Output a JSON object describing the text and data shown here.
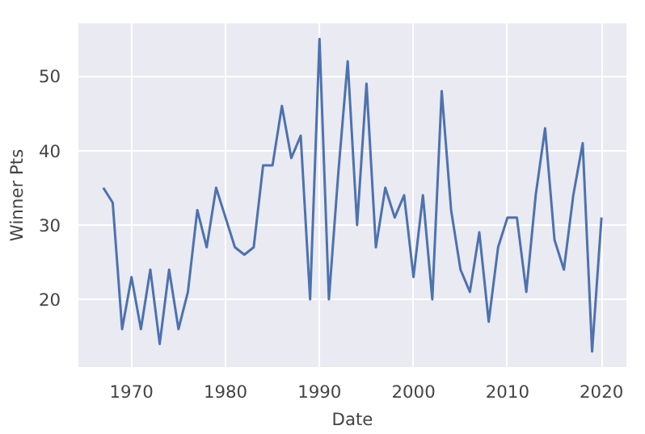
{
  "chart_data": {
    "type": "line",
    "xlabel": "Date",
    "ylabel": "Winner Pts",
    "x": [
      1967,
      1968,
      1969,
      1970,
      1971,
      1972,
      1973,
      1974,
      1975,
      1976,
      1977,
      1978,
      1979,
      1980,
      1981,
      1982,
      1983,
      1984,
      1985,
      1986,
      1987,
      1988,
      1989,
      1990,
      1991,
      1992,
      1993,
      1994,
      1995,
      1996,
      1997,
      1998,
      1999,
      2000,
      2001,
      2002,
      2003,
      2004,
      2005,
      2006,
      2007,
      2008,
      2009,
      2010,
      2011,
      2012,
      2013,
      2014,
      2015,
      2016,
      2017,
      2018,
      2019,
      2020
    ],
    "series": [
      {
        "color": "#4c72b0",
        "values": [
          35,
          33,
          16,
          23,
          16,
          24,
          14,
          24,
          16,
          21,
          32,
          27,
          35,
          31,
          27,
          26,
          27,
          38,
          38,
          46,
          39,
          42,
          20,
          55,
          20,
          37,
          52,
          30,
          49,
          27,
          35,
          31,
          34,
          23,
          34,
          20,
          48,
          32,
          24,
          21,
          29,
          17,
          27,
          31,
          31,
          21,
          34,
          43,
          28,
          24,
          34,
          41,
          13,
          31
        ]
      }
    ],
    "xlim": [
      1964.35,
      2022.65
    ],
    "ylim": [
      10.9,
      57.1
    ],
    "xticks": [
      1970,
      1980,
      1990,
      2000,
      2010,
      2020
    ],
    "yticks": [
      20,
      30,
      40,
      50
    ],
    "grid": true,
    "marker": "none",
    "line_style": "solid"
  }
}
